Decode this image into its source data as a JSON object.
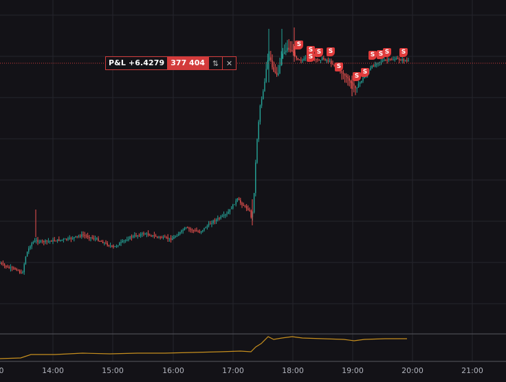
{
  "position": {
    "pl_label": "P&L +6.4279",
    "quantity": "377 404",
    "reverse_icon": "up-down-arrows-icon",
    "close_icon": "close-icon"
  },
  "time_axis": {
    "labels": [
      "0",
      "14:00",
      "15:00",
      "16:00",
      "17:00",
      "18:00",
      "19:00",
      "20:00",
      "21:00"
    ]
  },
  "markers": {
    "label": "S",
    "count": 12
  },
  "colors": {
    "background": "#131217",
    "grid": "#26252c",
    "up": "#26a69a",
    "down": "#ef5350",
    "position_line": "#d33b3b",
    "indicator": "#c8901e",
    "marker": "#e03c3c"
  }
}
